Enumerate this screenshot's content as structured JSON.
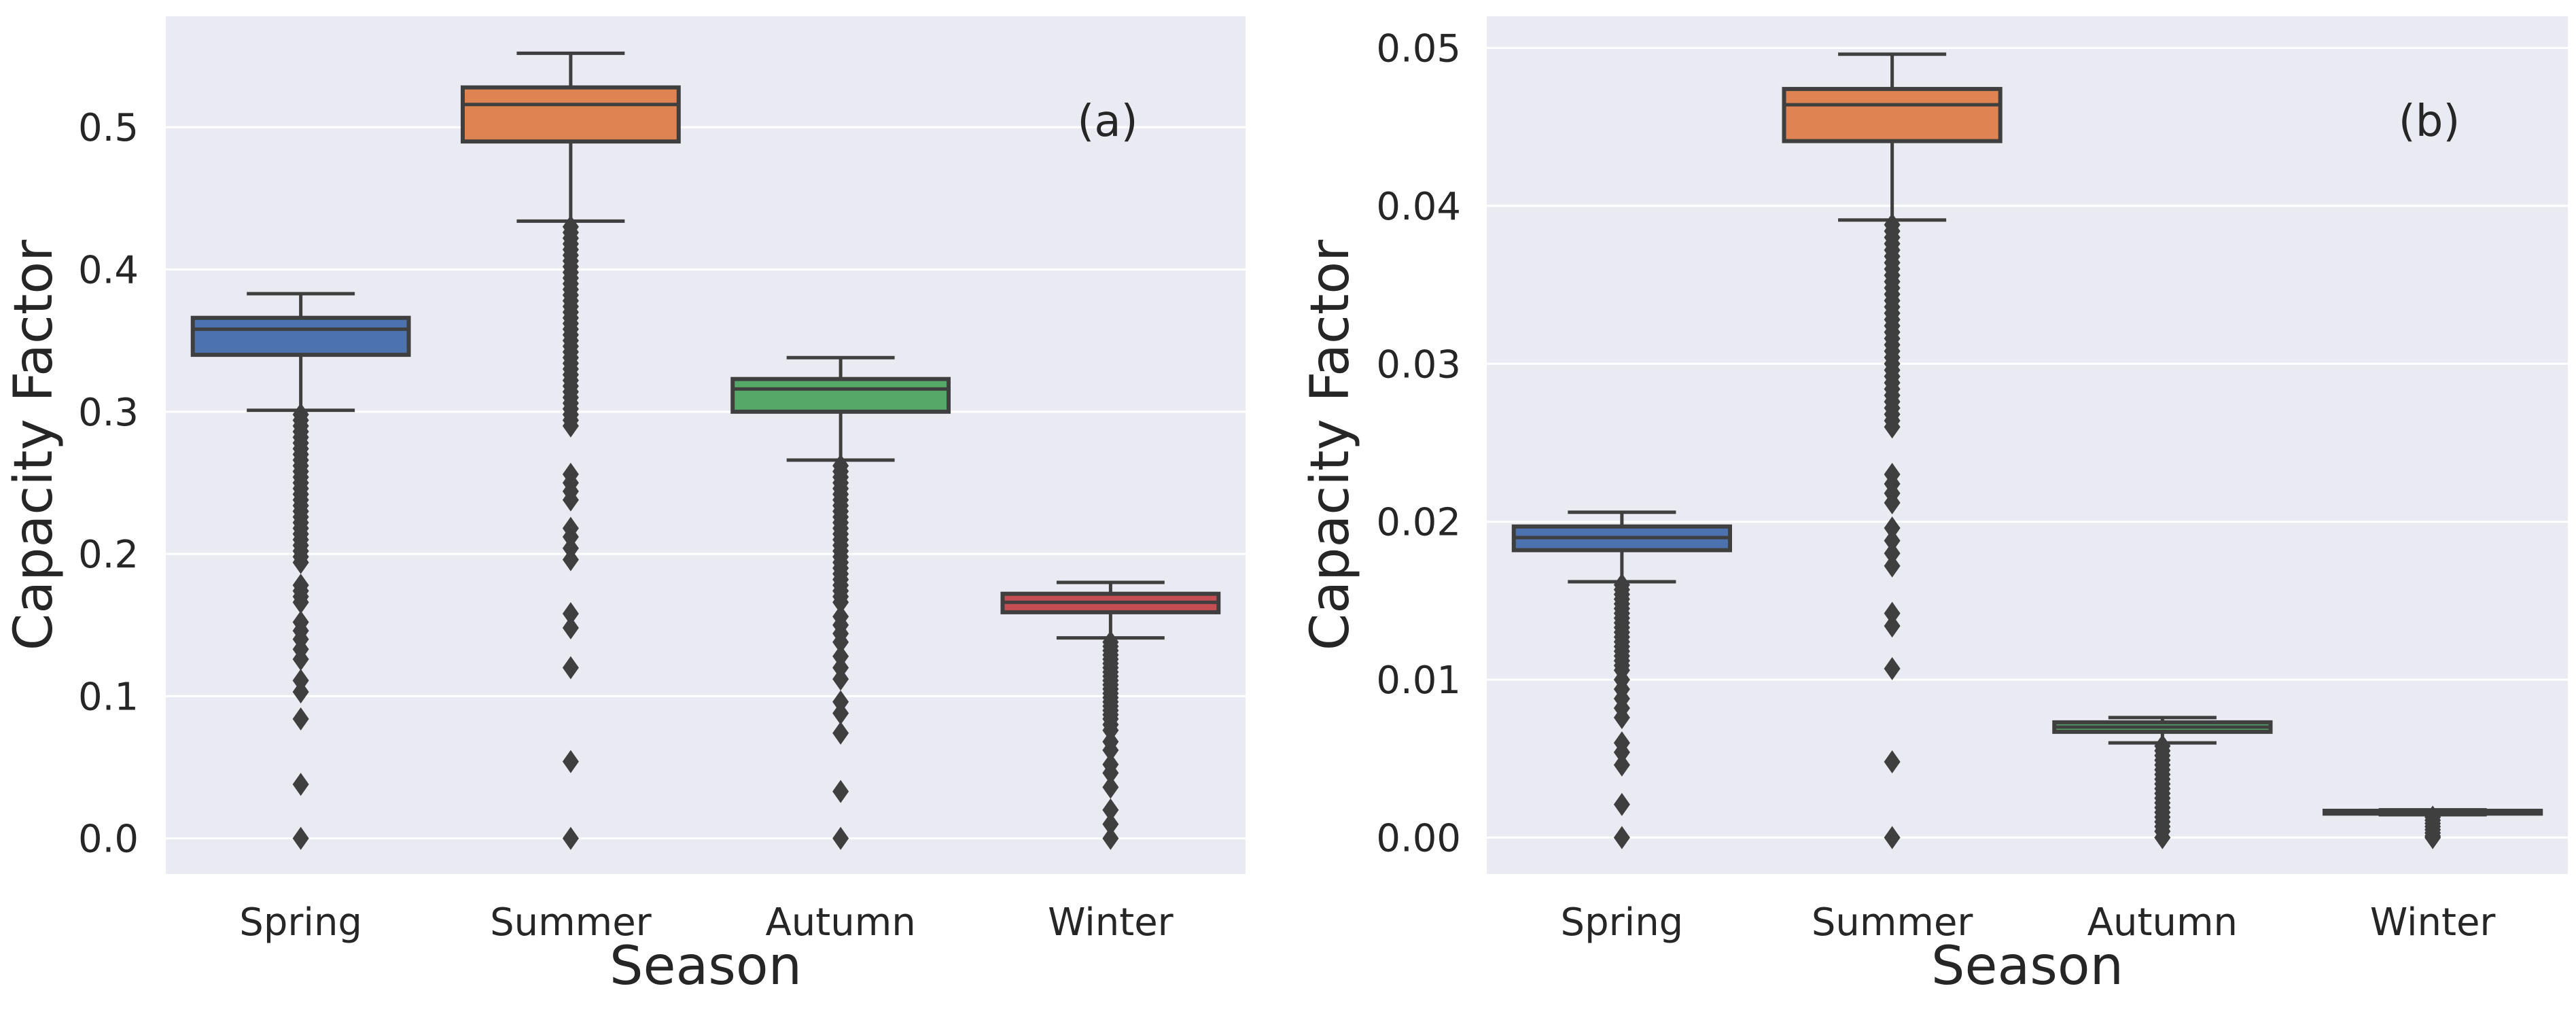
{
  "chart_data": [
    {
      "type": "box",
      "panel_label": "(a)",
      "xlabel": "Season",
      "ylabel": "Capacity Factor",
      "ylim": [
        -0.025,
        0.578
      ],
      "yticks": [
        0.0,
        0.1,
        0.2,
        0.3,
        0.4,
        0.5
      ],
      "ytick_labels": [
        "0.0",
        "0.1",
        "0.2",
        "0.3",
        "0.4",
        "0.5"
      ],
      "grid": true,
      "categories": [
        "Spring",
        "Summer",
        "Autumn",
        "Winter"
      ],
      "boxes": [
        {
          "category": "Spring",
          "color": "#4c72b0",
          "whisker_low": 0.301,
          "q1": 0.34,
          "median": 0.358,
          "q3": 0.366,
          "whisker_high": 0.383,
          "outliers": [
            0.298,
            0.294,
            0.29,
            0.286,
            0.282,
            0.278,
            0.274,
            0.27,
            0.266,
            0.262,
            0.258,
            0.254,
            0.25,
            0.246,
            0.242,
            0.238,
            0.234,
            0.23,
            0.226,
            0.222,
            0.218,
            0.214,
            0.21,
            0.206,
            0.202,
            0.198,
            0.194,
            0.178,
            0.174,
            0.17,
            0.166,
            0.152,
            0.146,
            0.14,
            0.133,
            0.126,
            0.111,
            0.103,
            0.084,
            0.038,
            0.0
          ]
        },
        {
          "category": "Summer",
          "color": "#dd8452",
          "whisker_low": 0.434,
          "q1": 0.49,
          "median": 0.516,
          "q3": 0.528,
          "whisker_high": 0.552,
          "outliers": [
            0.43,
            0.426,
            0.422,
            0.418,
            0.414,
            0.41,
            0.406,
            0.402,
            0.398,
            0.394,
            0.39,
            0.386,
            0.382,
            0.378,
            0.374,
            0.37,
            0.366,
            0.362,
            0.358,
            0.354,
            0.35,
            0.346,
            0.342,
            0.338,
            0.334,
            0.33,
            0.326,
            0.322,
            0.318,
            0.314,
            0.31,
            0.306,
            0.302,
            0.298,
            0.294,
            0.29,
            0.256,
            0.25,
            0.244,
            0.238,
            0.218,
            0.212,
            0.204,
            0.196,
            0.158,
            0.148,
            0.12,
            0.054,
            0.0
          ]
        },
        {
          "category": "Autumn",
          "color": "#55a868",
          "whisker_low": 0.266,
          "q1": 0.3,
          "median": 0.316,
          "q3": 0.323,
          "whisker_high": 0.338,
          "outliers": [
            0.262,
            0.258,
            0.254,
            0.25,
            0.246,
            0.242,
            0.238,
            0.234,
            0.23,
            0.226,
            0.222,
            0.218,
            0.214,
            0.21,
            0.206,
            0.202,
            0.198,
            0.194,
            0.19,
            0.186,
            0.182,
            0.178,
            0.174,
            0.17,
            0.166,
            0.156,
            0.15,
            0.144,
            0.138,
            0.128,
            0.12,
            0.112,
            0.096,
            0.088,
            0.074,
            0.033,
            0.0
          ]
        },
        {
          "category": "Winter",
          "color": "#c44e52",
          "whisker_low": 0.141,
          "q1": 0.159,
          "median": 0.166,
          "q3": 0.172,
          "whisker_high": 0.18,
          "outliers": [
            0.138,
            0.135,
            0.132,
            0.129,
            0.126,
            0.123,
            0.12,
            0.117,
            0.114,
            0.111,
            0.108,
            0.105,
            0.102,
            0.099,
            0.096,
            0.093,
            0.09,
            0.087,
            0.084,
            0.08,
            0.076,
            0.068,
            0.062,
            0.052,
            0.046,
            0.036,
            0.02,
            0.01,
            0.0
          ]
        }
      ]
    },
    {
      "type": "box",
      "panel_label": "(b)",
      "xlabel": "Season",
      "ylabel": "Capacity Factor",
      "ylim": [
        -0.0023,
        0.052
      ],
      "yticks": [
        0.0,
        0.01,
        0.02,
        0.03,
        0.04,
        0.05
      ],
      "ytick_labels": [
        "0.00",
        "0.01",
        "0.02",
        "0.03",
        "0.04",
        "0.05"
      ],
      "grid": true,
      "categories": [
        "Spring",
        "Summer",
        "Autumn",
        "Winter"
      ],
      "boxes": [
        {
          "category": "Spring",
          "color": "#4c72b0",
          "whisker_low": 0.0162,
          "q1": 0.0182,
          "median": 0.019,
          "q3": 0.0197,
          "whisker_high": 0.0206,
          "outliers": [
            0.016,
            0.0157,
            0.0154,
            0.0151,
            0.0148,
            0.0145,
            0.0142,
            0.0139,
            0.0136,
            0.0133,
            0.013,
            0.0127,
            0.0124,
            0.0121,
            0.0118,
            0.0115,
            0.0112,
            0.0109,
            0.0106,
            0.01,
            0.0094,
            0.0088,
            0.0082,
            0.0076,
            0.006,
            0.0054,
            0.0046,
            0.0021,
            0.0
          ]
        },
        {
          "category": "Summer",
          "color": "#dd8452",
          "whisker_low": 0.0391,
          "q1": 0.0441,
          "median": 0.0464,
          "q3": 0.0474,
          "whisker_high": 0.0496,
          "outliers": [
            0.0388,
            0.0384,
            0.038,
            0.0376,
            0.0372,
            0.0368,
            0.0364,
            0.036,
            0.0356,
            0.0352,
            0.0348,
            0.0344,
            0.034,
            0.0336,
            0.0332,
            0.0328,
            0.0324,
            0.032,
            0.0316,
            0.0312,
            0.0308,
            0.0304,
            0.03,
            0.0296,
            0.0292,
            0.0288,
            0.0284,
            0.028,
            0.0276,
            0.0272,
            0.0268,
            0.0264,
            0.026,
            0.023,
            0.0224,
            0.0218,
            0.0212,
            0.0196,
            0.0188,
            0.018,
            0.0172,
            0.0142,
            0.0134,
            0.0107,
            0.0048,
            0.0
          ]
        },
        {
          "category": "Autumn",
          "color": "#55a868",
          "whisker_low": 0.006,
          "q1": 0.0067,
          "median": 0.007,
          "q3": 0.0073,
          "whisker_high": 0.0076,
          "outliers": [
            0.0058,
            0.0055,
            0.0052,
            0.0049,
            0.0046,
            0.0043,
            0.004,
            0.0037,
            0.0034,
            0.0031,
            0.0028,
            0.0025,
            0.0022,
            0.0019,
            0.0016,
            0.0013,
            0.001,
            0.0007,
            0.0004,
            0.0
          ]
        },
        {
          "category": "Winter",
          "color": "#c44e52",
          "whisker_low": 0.00145,
          "q1": 0.00152,
          "median": 0.0016,
          "q3": 0.0017,
          "whisker_high": 0.00176,
          "outliers": [
            0.0013,
            0.0011,
            0.0009,
            0.0007,
            0.0005,
            0.0003,
            0.0001,
            0.0
          ]
        }
      ]
    }
  ]
}
